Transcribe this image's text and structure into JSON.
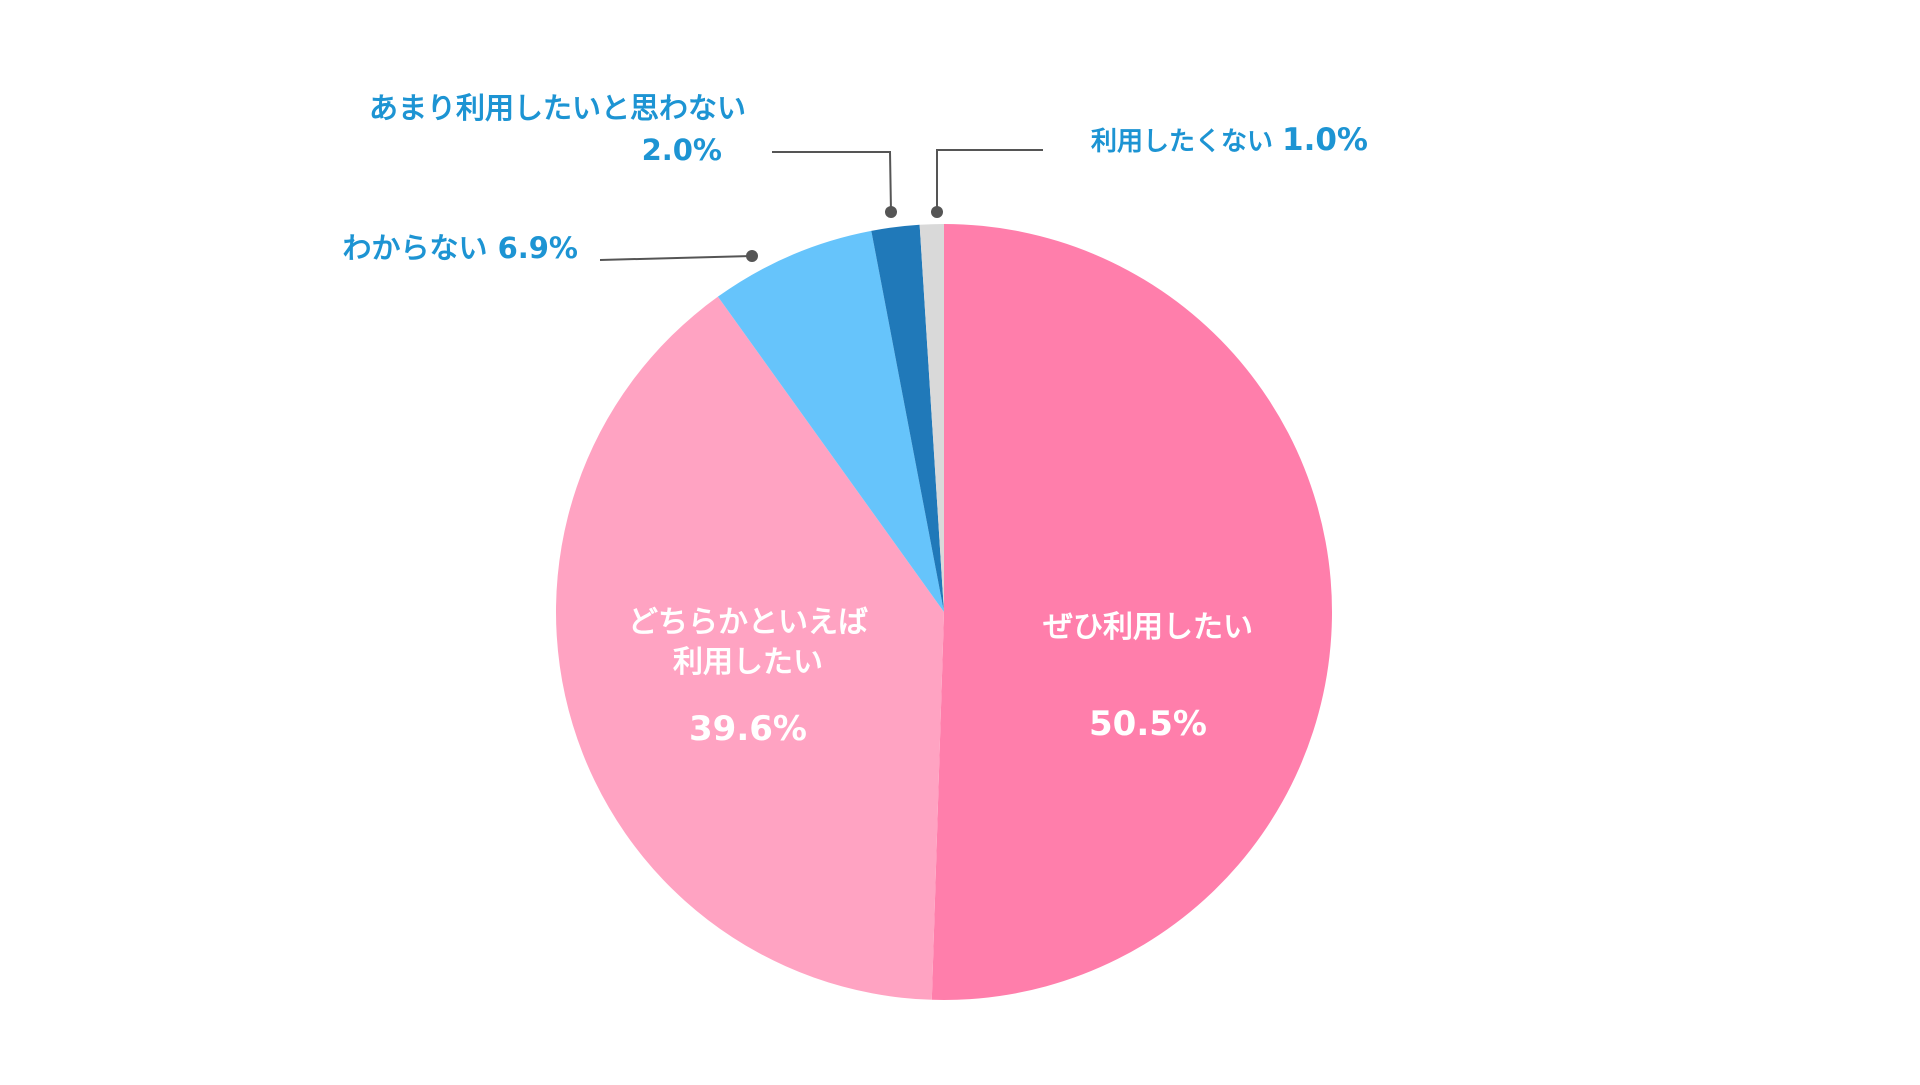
{
  "chart_data": {
    "type": "pie",
    "start_angle_deg": 0,
    "direction": "clockwise",
    "slices": [
      {
        "key": "zehi",
        "label_lines": [
          "ぜひ利用したい"
        ],
        "value": 50.5,
        "value_text": "50.5%",
        "color": "#ff7eab"
      },
      {
        "key": "dochira",
        "label_lines": [
          "どちらかといえば",
          "利用したい"
        ],
        "value": 39.6,
        "value_text": "39.6%",
        "color": "#ffa3c2"
      },
      {
        "key": "wakaranai",
        "label_lines": [
          "わからない"
        ],
        "value": 6.9,
        "value_text": "6.9%",
        "color": "#66c4fb"
      },
      {
        "key": "amari",
        "label_lines": [
          "あまり利用したいと思わない"
        ],
        "value": 2.0,
        "value_text": "2.0%",
        "color": "#2079b9"
      },
      {
        "key": "riyoushitakunai",
        "label_lines": [
          "利用したくない"
        ],
        "value": 1.0,
        "value_text": "1.0%",
        "color": "#d9d9d9"
      }
    ]
  }
}
